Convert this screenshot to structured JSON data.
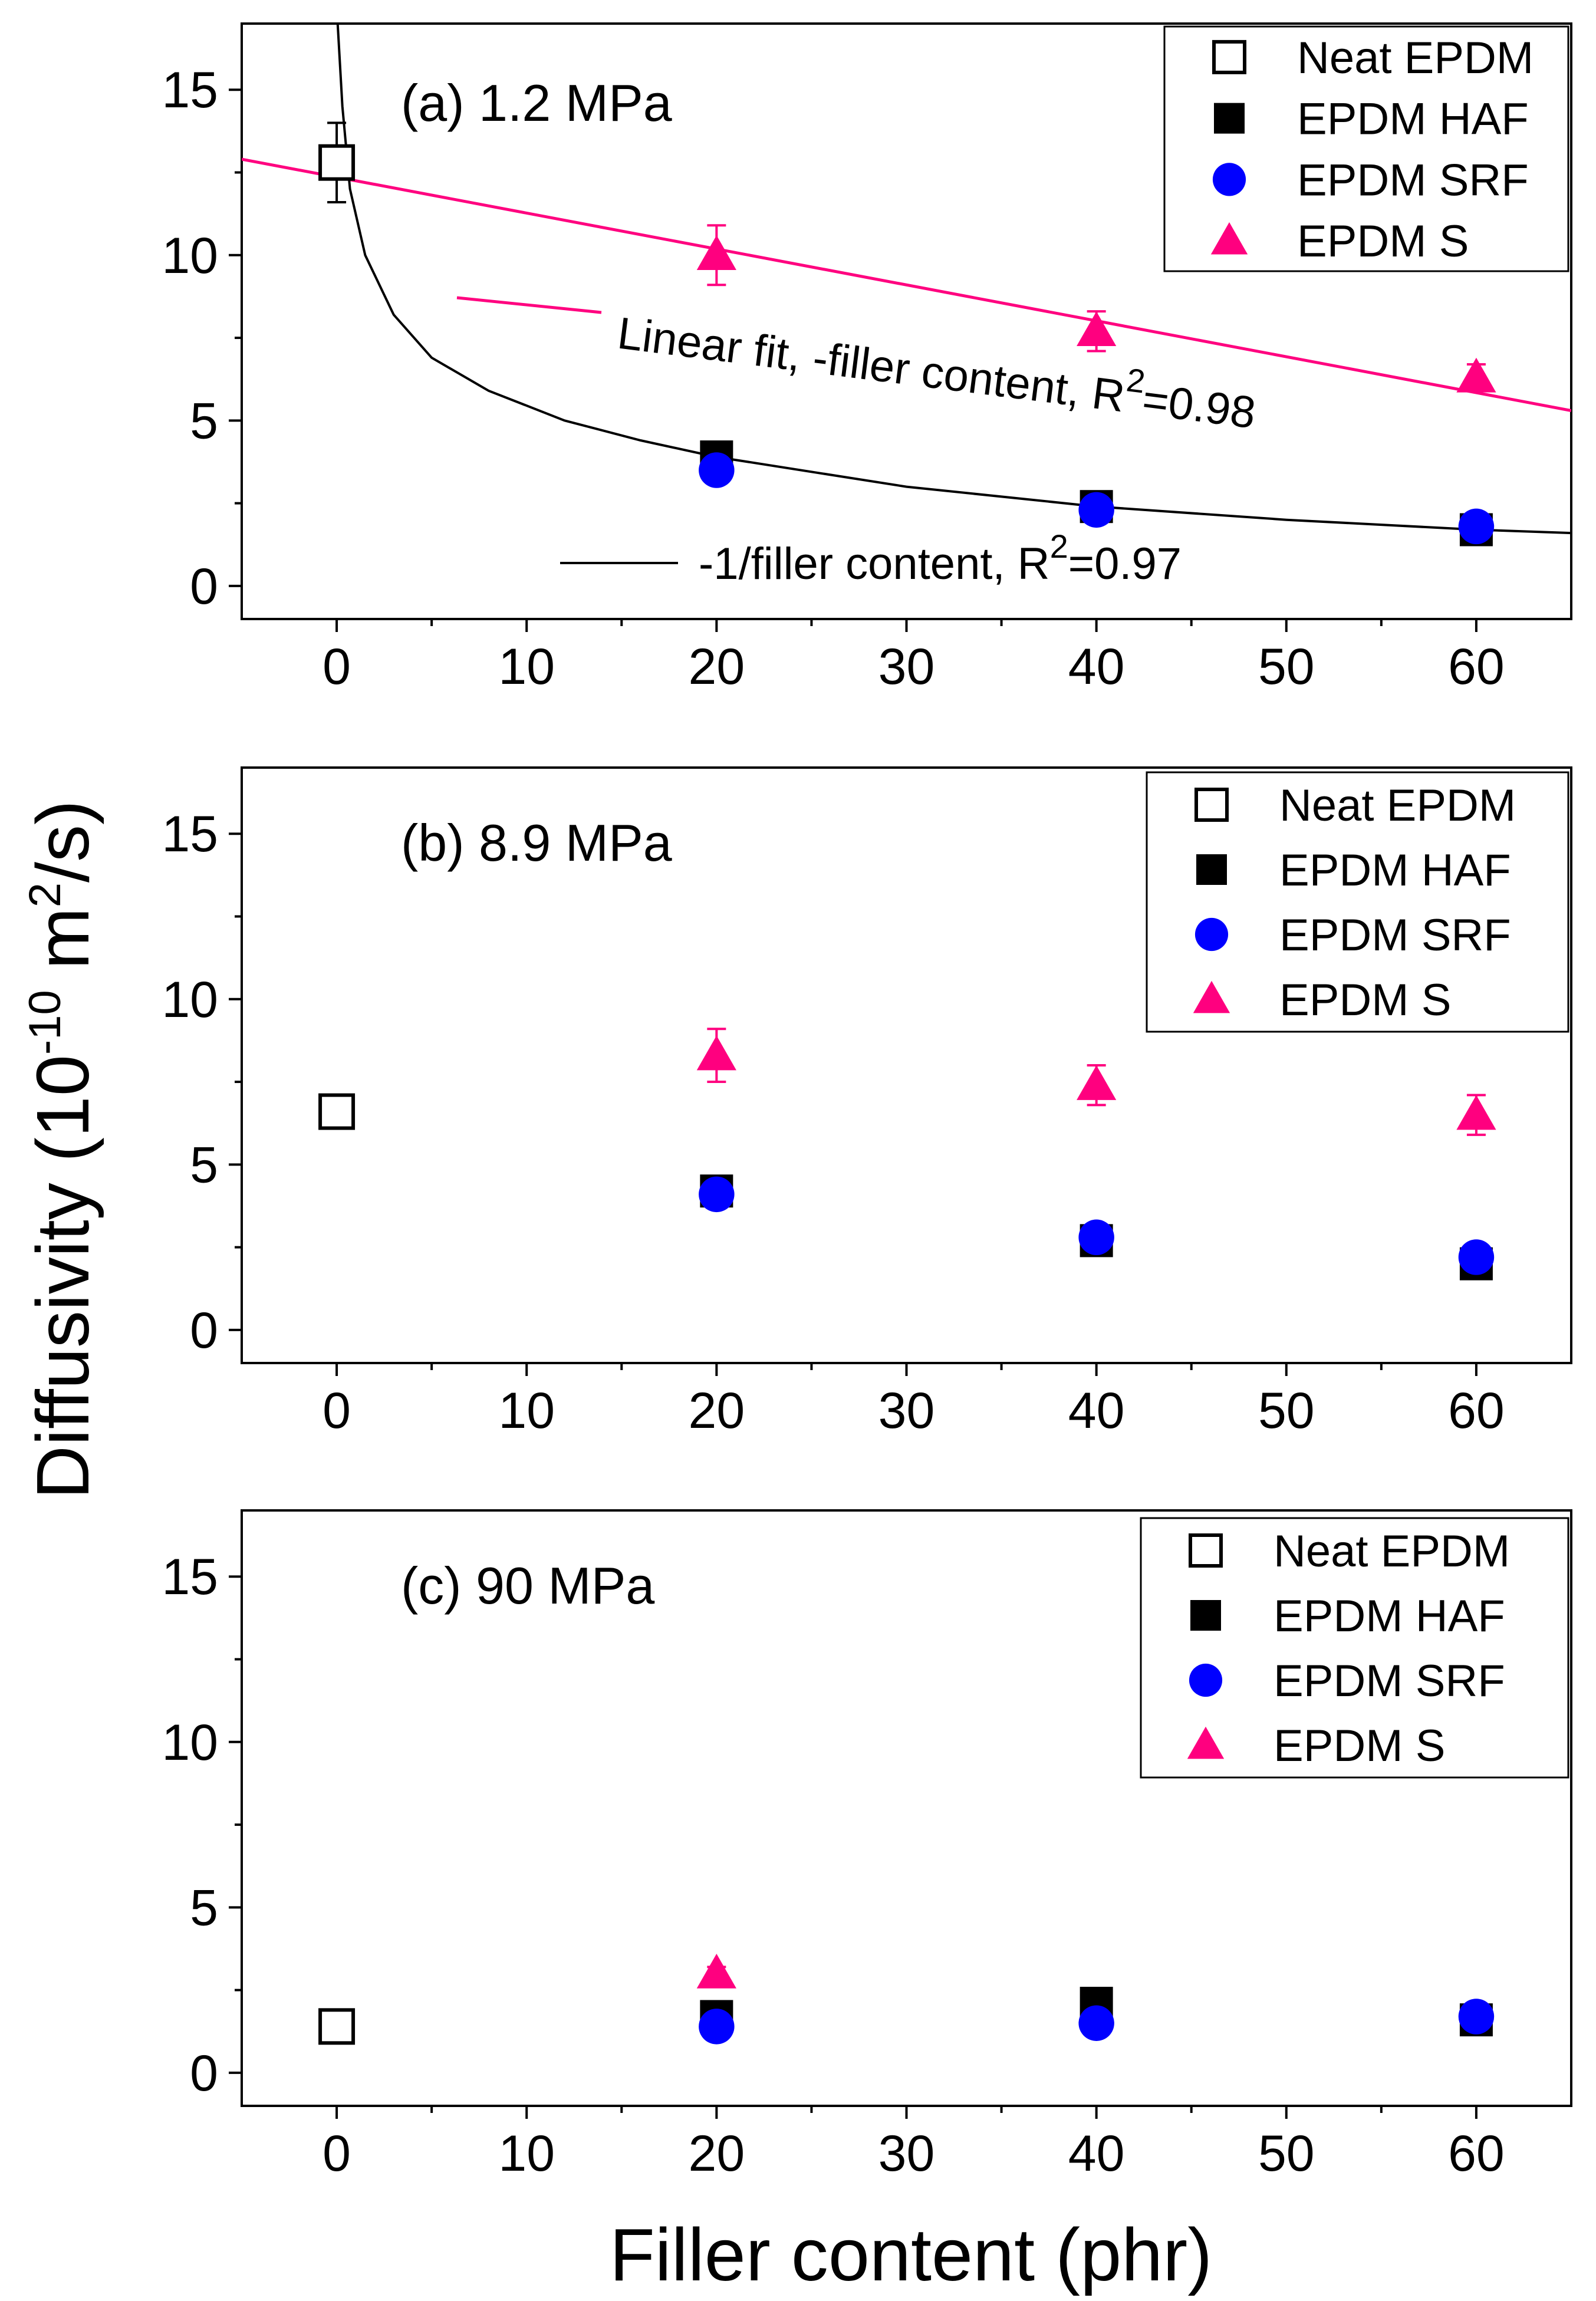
{
  "chart_data": [
    {
      "type": "scatter",
      "title": "(a) 1.2 MPa",
      "xlabel": "Filler content (phr)",
      "ylabel": "Diffusivity (10^-10 m^2/s)",
      "xlim": [
        -5,
        65
      ],
      "ylim": [
        -1,
        17
      ],
      "xticks": [
        "0",
        "10",
        "20",
        "30",
        "40",
        "50",
        "60"
      ],
      "yticks": [
        "0",
        "5",
        "10",
        "15"
      ],
      "legend_position": "top-right",
      "series": [
        {
          "name": "Neat EPDM",
          "marker": "open-square",
          "color": "#000000",
          "points": [
            [
              0,
              12.8
            ]
          ],
          "errors": [
            1.2
          ]
        },
        {
          "name": "EPDM HAF",
          "marker": "square",
          "color": "#000000",
          "points": [
            [
              20,
              3.9
            ],
            [
              40,
              2.4
            ],
            [
              60,
              1.7
            ]
          ],
          "errors": [
            0.2,
            0.2,
            0.2
          ]
        },
        {
          "name": "EPDM SRF",
          "marker": "circle",
          "color": "#0000ff",
          "points": [
            [
              20,
              3.5
            ],
            [
              40,
              2.3
            ],
            [
              60,
              1.8
            ]
          ],
          "errors": [
            0.2,
            0.2,
            0.2
          ]
        },
        {
          "name": "EPDM S",
          "marker": "triangle",
          "color": "#ff007f",
          "points": [
            [
              20,
              10.0
            ],
            [
              40,
              7.7
            ],
            [
              60,
              6.3
            ]
          ],
          "errors": [
            0.9,
            0.6,
            0.4
          ]
        }
      ],
      "fits": [
        {
          "label": "Linear fit, -filler content, R2=0.98",
          "label_parts": [
            "Linear fit, -filler content, R",
            "2",
            "=0.98"
          ],
          "color": "#ff007f",
          "kind": "linear",
          "from": [
            -5,
            12.9
          ],
          "to": [
            65,
            5.3
          ]
        },
        {
          "label": "-1/filler content, R2=0.97",
          "label_parts": [
            "-1/filler content, R",
            "2",
            "=0.97"
          ],
          "color": "#000000",
          "kind": "reciprocal",
          "x_range": [
            0.05,
            65
          ],
          "points": [
            [
              0.05,
              17
            ],
            [
              0.3,
              14.5
            ],
            [
              0.7,
              12.0
            ],
            [
              1.5,
              10.0
            ],
            [
              3,
              8.2
            ],
            [
              5,
              6.9
            ],
            [
              8,
              5.9
            ],
            [
              12,
              5.0
            ],
            [
              16,
              4.4
            ],
            [
              20,
              3.9
            ],
            [
              30,
              3.0
            ],
            [
              40,
              2.4
            ],
            [
              50,
              2.0
            ],
            [
              60,
              1.7
            ],
            [
              65,
              1.6
            ]
          ]
        }
      ]
    },
    {
      "type": "scatter",
      "title": "(b) 8.9 MPa",
      "xlabel": "Filler content (phr)",
      "ylabel": "Diffusivity (10^-10 m^2/s)",
      "xlim": [
        -5,
        65
      ],
      "ylim": [
        -1,
        17
      ],
      "xticks": [
        "0",
        "10",
        "20",
        "30",
        "40",
        "50",
        "60"
      ],
      "yticks": [
        "0",
        "5",
        "10",
        "15"
      ],
      "legend_position": "top-right",
      "series": [
        {
          "name": "Neat EPDM",
          "marker": "open-square",
          "color": "#000000",
          "points": [
            [
              0,
              6.6
            ]
          ],
          "errors": [
            0.5
          ]
        },
        {
          "name": "EPDM HAF",
          "marker": "square",
          "color": "#000000",
          "points": [
            [
              20,
              4.2
            ],
            [
              40,
              2.7
            ],
            [
              60,
              2.0
            ]
          ],
          "errors": [
            0.2,
            0.2,
            0.2
          ]
        },
        {
          "name": "EPDM SRF",
          "marker": "circle",
          "color": "#0000ff",
          "points": [
            [
              20,
              4.1
            ],
            [
              40,
              2.8
            ],
            [
              60,
              2.2
            ]
          ],
          "errors": [
            0.2,
            0.2,
            0.2
          ]
        },
        {
          "name": "EPDM S",
          "marker": "triangle",
          "color": "#ff007f",
          "points": [
            [
              20,
              8.3
            ],
            [
              40,
              7.4
            ],
            [
              60,
              6.5
            ]
          ],
          "errors": [
            0.8,
            0.6,
            0.6
          ]
        }
      ]
    },
    {
      "type": "scatter",
      "title": "(c) 90 MPa",
      "xlabel": "Filler content (phr)",
      "ylabel": "Diffusivity (10^-10 m^2/s)",
      "xlim": [
        -5,
        65
      ],
      "ylim": [
        -1,
        17
      ],
      "xticks": [
        "0",
        "10",
        "20",
        "30",
        "40",
        "50",
        "60"
      ],
      "yticks": [
        "0",
        "5",
        "10",
        "15"
      ],
      "legend_position": "top-right",
      "series": [
        {
          "name": "Neat EPDM",
          "marker": "open-square",
          "color": "#000000",
          "points": [
            [
              0,
              1.4
            ]
          ],
          "errors": [
            0.3
          ]
        },
        {
          "name": "EPDM HAF",
          "marker": "square",
          "color": "#000000",
          "points": [
            [
              20,
              1.7
            ],
            [
              40,
              2.1
            ],
            [
              60,
              1.6
            ]
          ],
          "errors": [
            0.2,
            0.2,
            0.2
          ]
        },
        {
          "name": "EPDM SRF",
          "marker": "circle",
          "color": "#0000ff",
          "points": [
            [
              20,
              1.4
            ],
            [
              40,
              1.5
            ],
            [
              60,
              1.7
            ]
          ],
          "errors": [
            0.2,
            0.2,
            0.2
          ]
        },
        {
          "name": "EPDM S",
          "marker": "triangle",
          "color": "#ff007f",
          "points": [
            [
              20,
              3.0
            ]
          ],
          "errors": [
            0.2
          ]
        }
      ]
    }
  ],
  "axis_labels": {
    "x": "Filler content (phr)",
    "y_main": "Diffusivity (10",
    "y_exp1": "-10",
    "y_mid": " m",
    "y_exp2": "2",
    "y_end": "/s)"
  }
}
